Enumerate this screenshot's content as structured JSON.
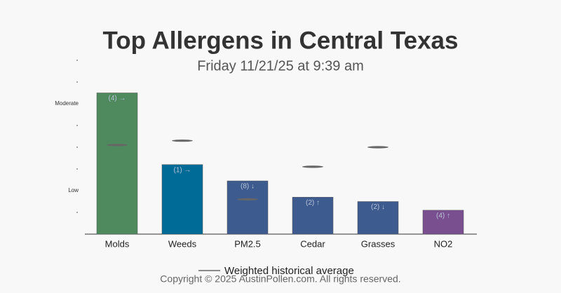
{
  "chart_data": {
    "type": "bar",
    "title": "Top Allergens in Central Texas",
    "subtitle": "Friday 11/21/25 at 9:39 am",
    "categories": [
      "Molds",
      "Weeds",
      "PM2.5",
      "Cedar",
      "Grasses",
      "NO2"
    ],
    "values": [
      6.5,
      3.2,
      2.45,
      1.7,
      1.5,
      1.1
    ],
    "colors": [
      "#4e8a5e",
      "#006b96",
      "#3e5b8f",
      "#3e5b8f",
      "#3e5b8f",
      "#7a4f8f"
    ],
    "annotations": [
      "(4) →",
      "(1) →",
      "(8) ↓",
      "(2) ↑",
      "(2) ↓",
      "(4) ↑"
    ],
    "history": {
      "name": "Weighted historical average",
      "color": "#666666",
      "values": [
        4.1,
        4.3,
        1.6,
        3.1,
        4.0,
        null
      ]
    },
    "ylim": [
      0,
      8
    ],
    "yticks": [
      {
        "value": 2,
        "label": "Low"
      },
      {
        "value": 6,
        "label": "Moderate"
      }
    ],
    "yminor_ticks": [
      1,
      3,
      4,
      5,
      7,
      8
    ]
  },
  "footer": "Copyright © 2025 AustinPollen.com.  All rights reserved."
}
